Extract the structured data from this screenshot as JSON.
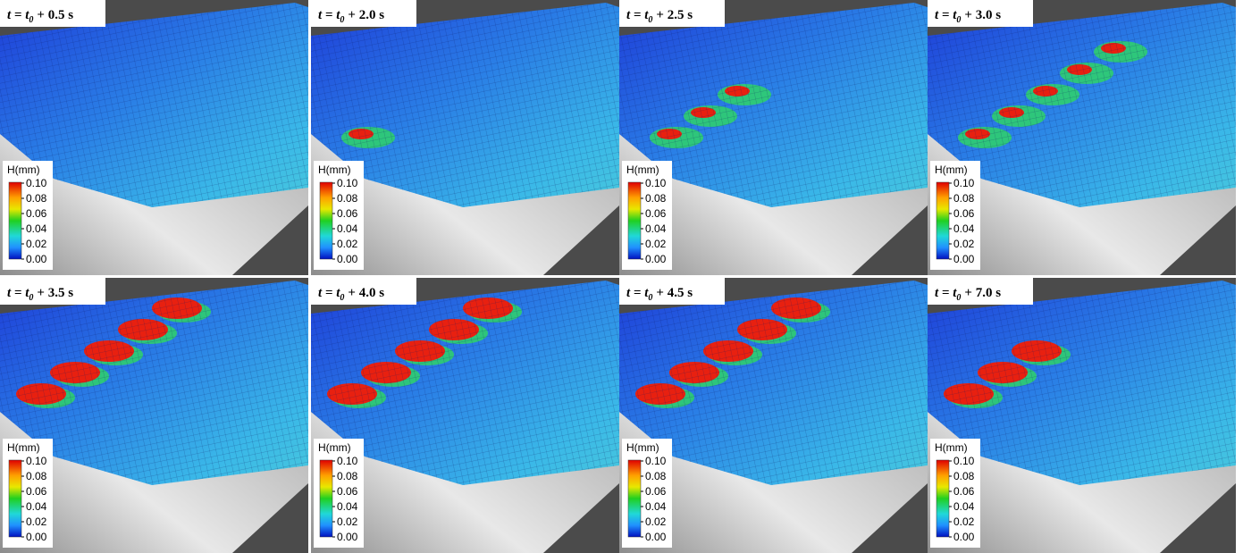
{
  "panels": [
    {
      "var": "t = t",
      "sub": "0",
      "offset": "+ 0.5 s"
    },
    {
      "var": "t = t",
      "sub": "0",
      "offset": "+ 2.0 s"
    },
    {
      "var": "t = t",
      "sub": "0",
      "offset": "+ 2.5 s"
    },
    {
      "var": "t = t",
      "sub": "0",
      "offset": "+ 3.0 s"
    },
    {
      "var": "t = t",
      "sub": "0",
      "offset": "+ 3.5 s"
    },
    {
      "var": "t = t",
      "sub": "0",
      "offset": "+ 4.0 s"
    },
    {
      "var": "t = t",
      "sub": "0",
      "offset": "+ 4.5 s"
    },
    {
      "var": "t = t",
      "sub": "0",
      "offset": "+ 7.0 s"
    }
  ],
  "colorbar": {
    "title": "H(mm)",
    "ticks": [
      "0.10",
      "0.08",
      "0.06",
      "0.04",
      "0.02",
      "0.00"
    ]
  }
}
